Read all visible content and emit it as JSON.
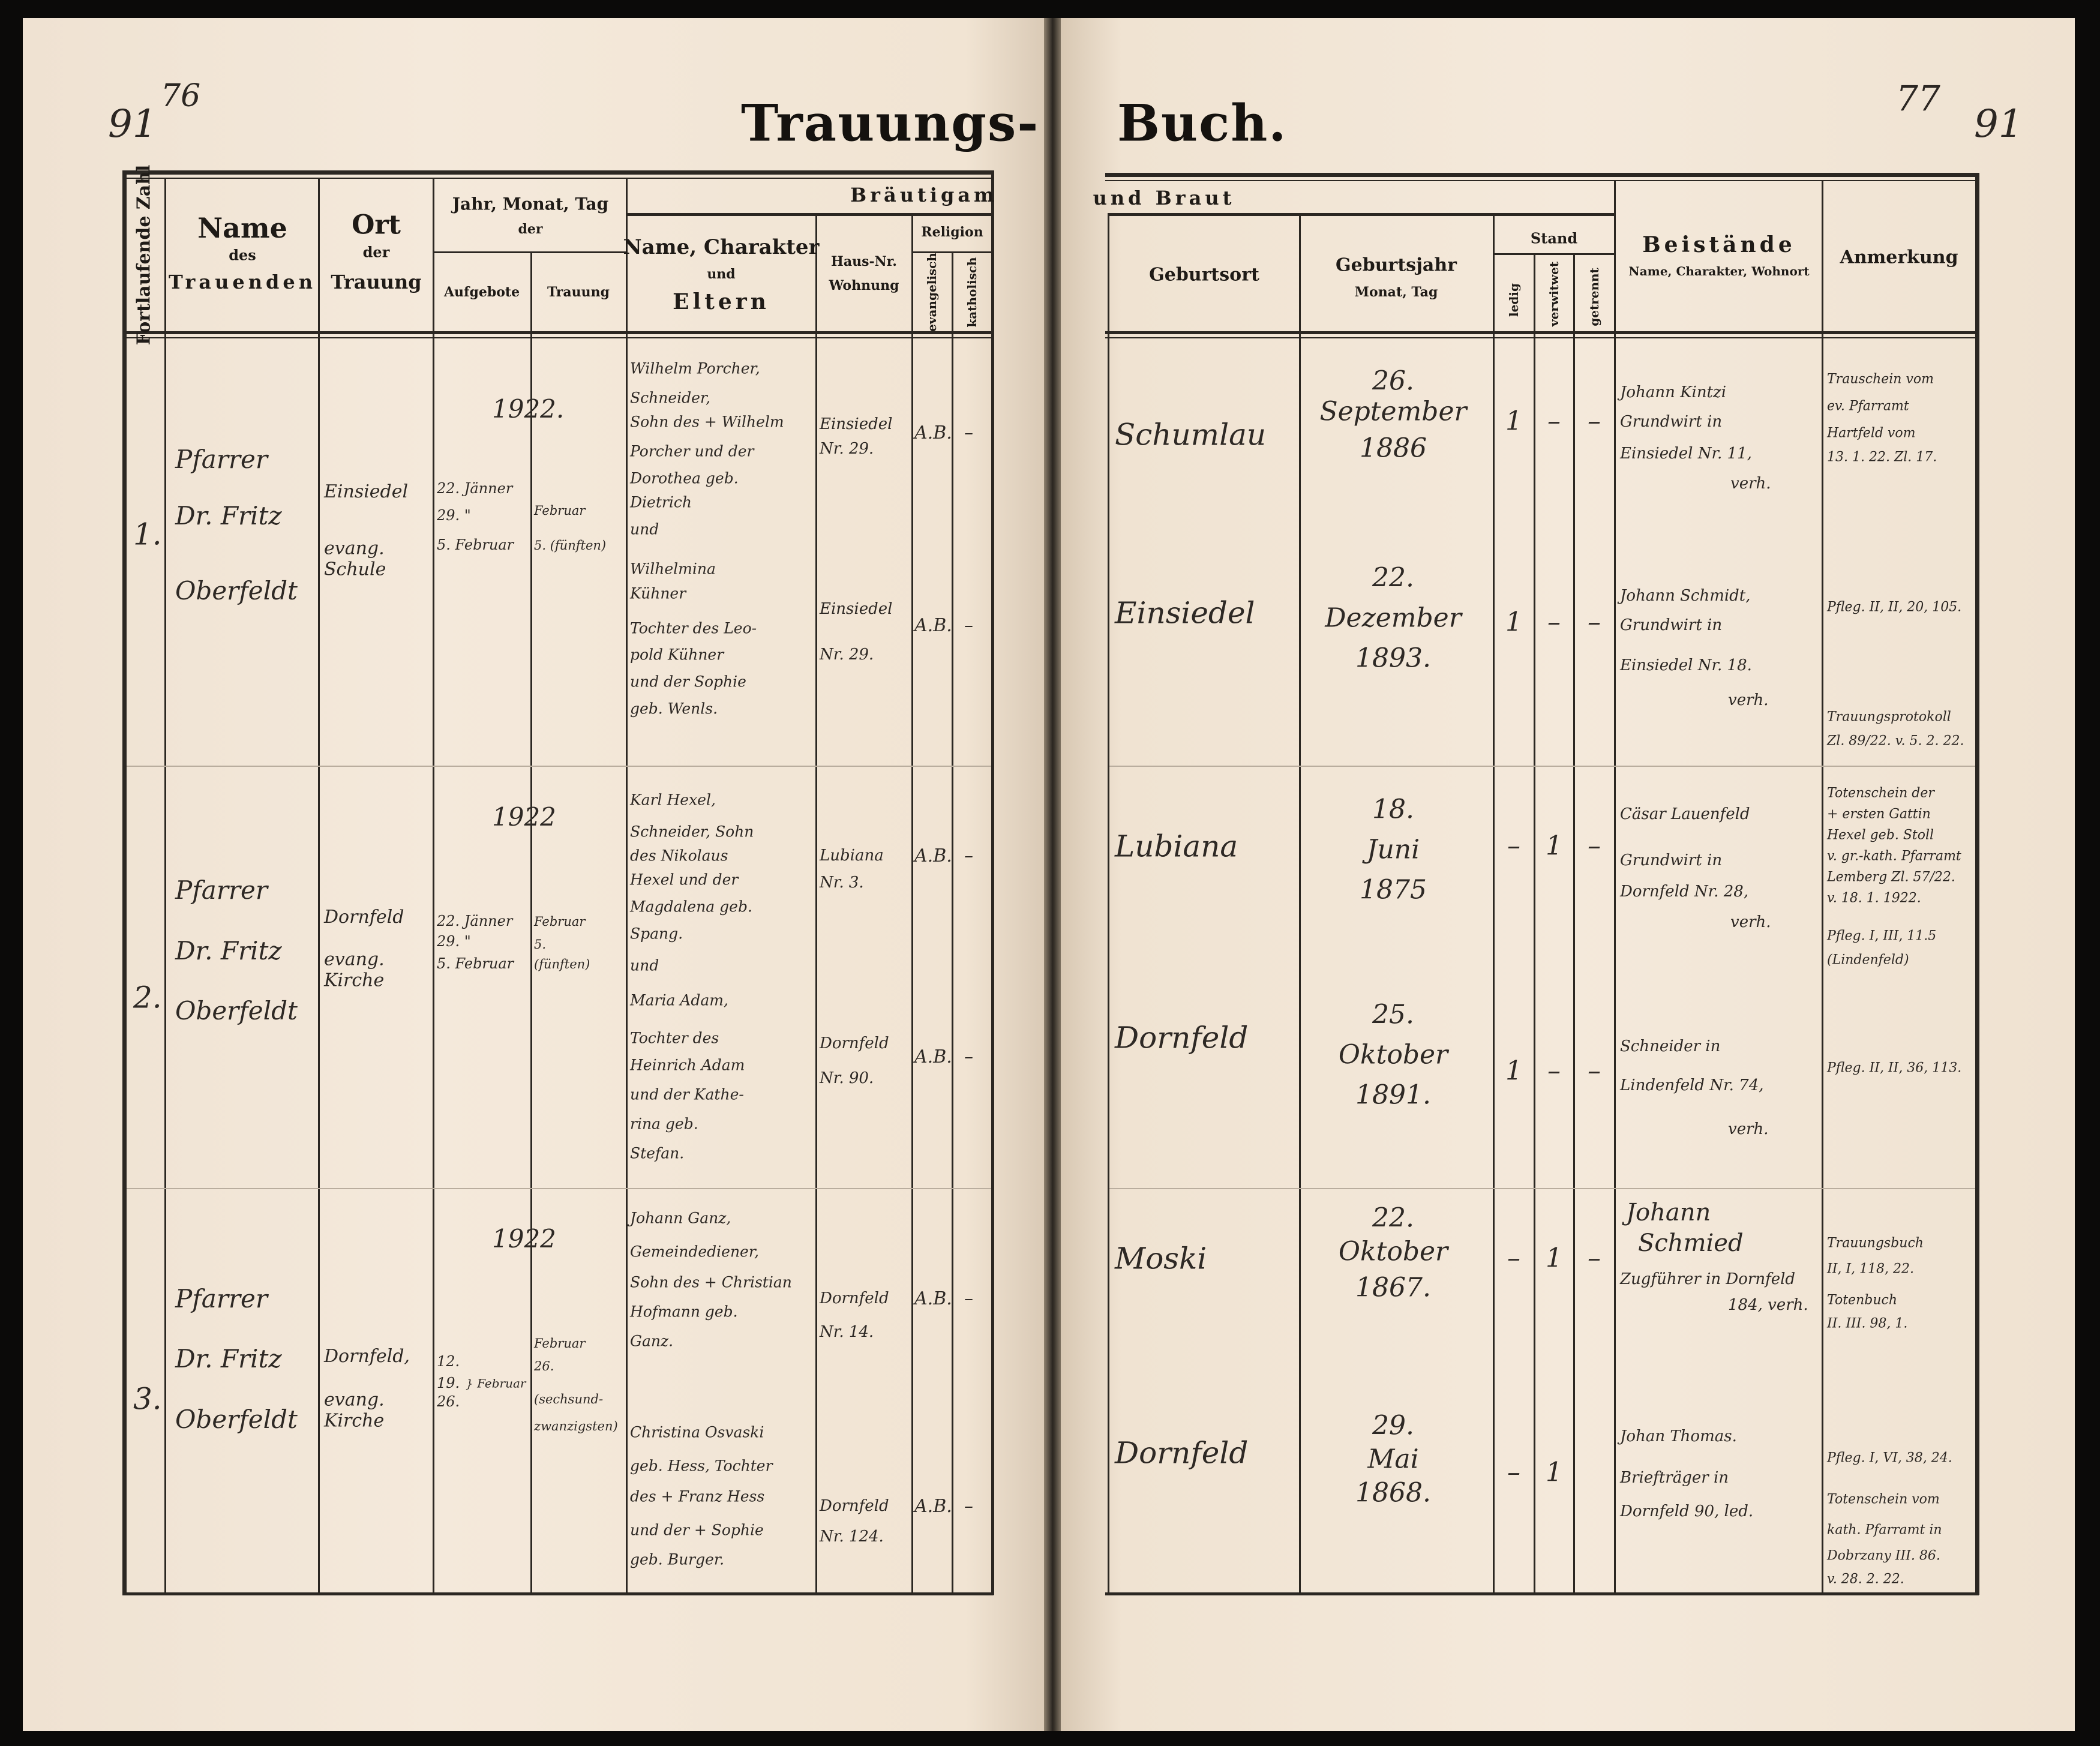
{
  "left_page": {
    "page_number": "91",
    "old_page_number": "76",
    "title": "Trauungs-",
    "headers": {
      "serial": "Fortlaufende Zahl",
      "name": [
        "Name",
        "des",
        "Trauenden"
      ],
      "place": [
        "Ort",
        "der",
        "Trauung"
      ],
      "date": [
        "Jahr, Monat, Tag",
        "der"
      ],
      "banns": "Aufgebote",
      "wedding": "Trauung",
      "groom": "Bräutigam",
      "groom_name": [
        "Name, Charakter",
        "und",
        "Eltern"
      ],
      "house": [
        "Haus-Nr.",
        "Wohnung"
      ],
      "religion": "Religion",
      "evangelical": "evangelisch",
      "catholic": "katholisch"
    },
    "entries": [
      {
        "number": "1.",
        "officiant": [
          "Pfarrer",
          "Dr. Fritz",
          "Oberfeldt"
        ],
        "place": [
          "Einsiedel",
          "evang. Schule"
        ],
        "year": "1922.",
        "banns": [
          "22. Jänner",
          "29.   \"",
          "5. Februar"
        ],
        "wedding": [
          "Februar",
          "5. (fünften)"
        ],
        "groom_text": [
          "Wilhelm Porcher,",
          "Schneider,",
          "Sohn des + Wilhelm",
          "Porcher und der",
          "Dorothea geb.",
          "Dietrich",
          "und"
        ],
        "bride_text": [
          "Wilhelmina",
          "Kühner",
          "Tochter des Leo-",
          "pold Kühner",
          "und der Sophie",
          "geb. Wenls."
        ],
        "groom_house": [
          "Einsiedel",
          "Nr. 29."
        ],
        "bride_house": [
          "Einsiedel",
          "Nr. 29."
        ],
        "groom_religion": [
          "A.B.",
          "–"
        ],
        "bride_religion": [
          "A.B.",
          "–"
        ]
      },
      {
        "number": "2.",
        "officiant": [
          "Pfarrer",
          "Dr. Fritz",
          "Oberfeldt"
        ],
        "place": [
          "Dornfeld",
          "evang. Kirche"
        ],
        "year": "1922",
        "banns": [
          "22. Jänner",
          "29.   \"",
          "5. Februar"
        ],
        "wedding": [
          "Februar",
          "5.",
          "(fünften)"
        ],
        "groom_text": [
          "Karl Hexel,",
          "Schneider, Sohn",
          "des Nikolaus",
          "Hexel und der",
          "Magdalena geb.",
          "Spang.",
          "und"
        ],
        "bride_text": [
          "Maria Adam,",
          "Tochter des",
          "Heinrich Adam",
          "und der Kathe-",
          "rina geb.",
          "Stefan."
        ],
        "groom_house": [
          "Lubiana",
          "Nr. 3."
        ],
        "bride_house": [
          "Dornfeld",
          "Nr. 90."
        ],
        "groom_religion": [
          "A.B.",
          "–"
        ],
        "bride_religion": [
          "A.B.",
          "–"
        ]
      },
      {
        "number": "3.",
        "officiant": [
          "Pfarrer",
          "Dr. Fritz",
          "Oberfeldt"
        ],
        "place": [
          "Dornfeld,",
          "evang. Kirche"
        ],
        "year": "1922",
        "banns": [
          "12.",
          "19.",
          "26.",
          "} Februar"
        ],
        "wedding": [
          "Februar",
          "26.",
          "(sechsund-",
          "zwanzigsten)"
        ],
        "groom_text": [
          "Johann Ganz,",
          "Gemeindediener,",
          "Sohn des + Christian",
          "Hofmann geb.",
          "Ganz."
        ],
        "bride_text": [
          "Christina Osvaski",
          "geb. Hess, Tochter",
          "des + Franz Hess",
          "und der + Sophie",
          "geb. Burger."
        ],
        "groom_house": [
          "Dornfeld",
          "Nr. 14."
        ],
        "bride_house": [
          "Dornfeld",
          "Nr. 124."
        ],
        "groom_religion": [
          "A.B.",
          "–"
        ],
        "bride_religion": [
          "A.B.",
          "–"
        ]
      }
    ]
  },
  "right_page": {
    "page_number": "77",
    "new_page_number": "91",
    "title": "Buch.",
    "headers": {
      "bride": "und Braut",
      "birthplace": "Geburtsort",
      "birth_year": [
        "Geburtsjahr",
        "Monat, Tag"
      ],
      "status": "Stand",
      "single": "ledig",
      "widowed": "verwitwet",
      "separated": "getrennt",
      "witnesses": [
        "Beistände",
        "Name, Charakter, Wohnort"
      ],
      "remarks": "Anmerkung"
    },
    "entries": [
      {
        "groom": {
          "birthplace": "Schumlau",
          "birth": [
            "26.",
            "September",
            "1886"
          ],
          "status": [
            "1",
            "–",
            "–"
          ]
        },
        "bride": {
          "birthplace": "Einsiedel",
          "birth": [
            "22.",
            "Dezember",
            "1893."
          ],
          "status": [
            "1",
            "–",
            "–"
          ]
        },
        "witness_1": [
          "Johann Kintzi",
          "Grundwirt in",
          "Einsiedel Nr. 11,",
          "verh."
        ],
        "witness_2": [
          "Johann Schmidt,",
          "Grundwirt in",
          "Einsiedel Nr. 18.",
          "verh."
        ],
        "remarks_1": [
          "Trauschein vom",
          "ev. Pfarramt",
          "Hartfeld vom",
          "13. 1. 22. Zl. 17."
        ],
        "remarks_2": [
          "Pfleg. II, II, 20, 105.",
          "Trauungsprotokoll",
          "Zl. 89/22. v. 5. 2. 22."
        ]
      },
      {
        "groom": {
          "birthplace": "Lubiana",
          "birth": [
            "18.",
            "Juni",
            "1875"
          ],
          "status": [
            "–",
            "1",
            "–"
          ]
        },
        "bride": {
          "birthplace": "Dornfeld",
          "birth": [
            "25.",
            "Oktober",
            "1891."
          ],
          "status": [
            "1",
            "–",
            "–"
          ]
        },
        "witness_1": [
          "Cäsar Lauenfeld",
          "Grundwirt in",
          "Dornfeld Nr. 28,",
          "verh."
        ],
        "witness_2": [
          "Schneider in",
          "Lindenfeld Nr. 74,",
          "verh."
        ],
        "remarks_1": [
          "Totenschein der",
          "+ ersten Gattin",
          "Hexel geb. Stoll",
          "v. gr.-kath. Pfarramt",
          "Lemberg Zl. 57/22.",
          "v. 18. 1. 1922.",
          "Pfleg. I, III, 11.5",
          "(Lindenfeld)"
        ],
        "remarks_2": [
          "Pfleg. II, II, 36, 113."
        ]
      },
      {
        "groom": {
          "birthplace": "Moski",
          "birth": [
            "22.",
            "Oktober",
            "1867."
          ],
          "status": [
            "–",
            "1",
            "–"
          ]
        },
        "bride": {
          "birthplace": "Dornfeld",
          "birth": [
            "29.",
            "Mai",
            "1868."
          ],
          "status": [
            "–",
            "1",
            ""
          ]
        },
        "witness_1": [
          "Johann",
          "Schmied",
          "Zugführer in Dornfeld",
          "184, verh."
        ],
        "witness_2": [
          "Johan Thomas.",
          "Briefträger in",
          "Dornfeld 90, led."
        ],
        "remarks_1": [
          "Trauungsbuch",
          "II, I, 118, 22.",
          "Totenbuch",
          "II. III. 98, 1."
        ],
        "remarks_2": [
          "Pfleg. I, VI, 38, 24.",
          "Totenschein vom",
          "kath. Pfarramt in",
          "Dobrzany III. 86.",
          "v. 28. 2. 22."
        ]
      }
    ]
  }
}
